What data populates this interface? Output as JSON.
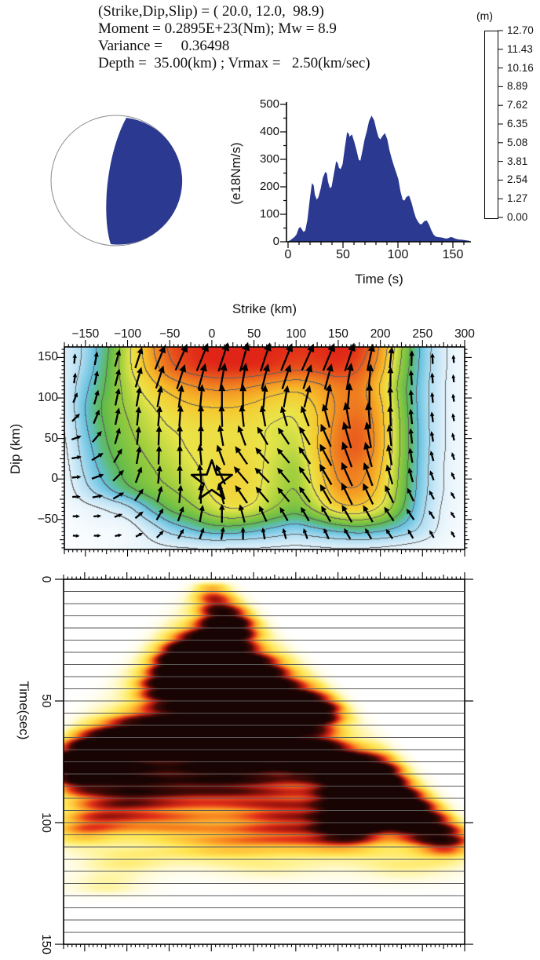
{
  "header": {
    "line1": "(Strike,Dip,Slip) = ( 20.0, 12.0,  98.9)",
    "line2": "Moment = 0.2895E+23(Nm); Mw = 8.9",
    "line3": "Variance =     0.36498",
    "line4": "Depth =  35.00(km) ; Vrmax =   2.50(km/sec)"
  },
  "beachball": {
    "fill": "#2b3990",
    "stroke": "#8a8a8a"
  },
  "colorbar": {
    "unit": "(m)",
    "tick_labels": [
      "12.70",
      "11.43",
      "10.16",
      "8.89",
      "7.62",
      "6.35",
      "5.08",
      "3.81",
      "2.54",
      "1.27",
      "0.00"
    ]
  },
  "chart_data": [
    {
      "name": "moment-rate-function",
      "type": "area",
      "xlabel": "Time (s)",
      "ylabel": "(e18Nm/s)",
      "xlim": [
        0,
        168
      ],
      "ylim": [
        0,
        500
      ],
      "xticks": [
        0,
        50,
        100,
        150
      ],
      "xtick_labels": [
        "0",
        "50",
        "100",
        "150"
      ],
      "yticks": [
        0,
        100,
        200,
        300,
        400,
        500
      ],
      "ytick_labels": [
        "0",
        "100",
        "200",
        "300",
        "400",
        "500"
      ],
      "fill": "#2b3990",
      "points": [
        [
          0,
          0
        ],
        [
          2,
          4
        ],
        [
          4,
          10
        ],
        [
          6,
          16
        ],
        [
          8,
          26
        ],
        [
          10,
          48
        ],
        [
          11,
          52
        ],
        [
          12,
          46
        ],
        [
          14,
          34
        ],
        [
          16,
          40
        ],
        [
          18,
          80
        ],
        [
          20,
          150
        ],
        [
          22,
          210
        ],
        [
          23,
          205
        ],
        [
          24,
          172
        ],
        [
          26,
          150
        ],
        [
          28,
          162
        ],
        [
          30,
          192
        ],
        [
          32,
          232
        ],
        [
          34,
          252
        ],
        [
          35,
          248
        ],
        [
          36,
          218
        ],
        [
          38,
          192
        ],
        [
          40,
          200
        ],
        [
          42,
          246
        ],
        [
          44,
          290
        ],
        [
          45,
          285
        ],
        [
          46,
          268
        ],
        [
          48,
          262
        ],
        [
          50,
          282
        ],
        [
          52,
          342
        ],
        [
          54,
          396
        ],
        [
          55,
          392
        ],
        [
          56,
          378
        ],
        [
          57,
          385
        ],
        [
          58,
          388
        ],
        [
          60,
          362
        ],
        [
          62,
          332
        ],
        [
          64,
          298
        ],
        [
          66,
          292
        ],
        [
          68,
          330
        ],
        [
          70,
          372
        ],
        [
          72,
          402
        ],
        [
          74,
          438
        ],
        [
          76,
          456
        ],
        [
          78,
          442
        ],
        [
          80,
          408
        ],
        [
          82,
          380
        ],
        [
          84,
          370
        ],
        [
          86,
          383
        ],
        [
          88,
          393
        ],
        [
          90,
          372
        ],
        [
          92,
          332
        ],
        [
          94,
          302
        ],
        [
          96,
          276
        ],
        [
          98,
          252
        ],
        [
          100,
          228
        ],
        [
          102,
          182
        ],
        [
          104,
          152
        ],
        [
          106,
          148
        ],
        [
          108,
          162
        ],
        [
          110,
          166
        ],
        [
          112,
          142
        ],
        [
          114,
          112
        ],
        [
          116,
          86
        ],
        [
          118,
          72
        ],
        [
          120,
          62
        ],
        [
          122,
          63
        ],
        [
          124,
          73
        ],
        [
          126,
          76
        ],
        [
          128,
          62
        ],
        [
          130,
          42
        ],
        [
          132,
          26
        ],
        [
          134,
          18
        ],
        [
          136,
          16
        ],
        [
          138,
          15
        ],
        [
          140,
          14
        ],
        [
          142,
          12
        ],
        [
          144,
          10
        ],
        [
          146,
          12
        ],
        [
          148,
          16
        ],
        [
          150,
          14
        ],
        [
          152,
          10
        ],
        [
          154,
          8
        ],
        [
          156,
          7
        ],
        [
          158,
          6
        ],
        [
          160,
          5
        ],
        [
          163,
          3
        ],
        [
          165,
          2
        ]
      ]
    },
    {
      "name": "slip-distribution-map",
      "type": "heatmap",
      "xlabel": "Strike (km)",
      "ylabel": "Dip (km)",
      "unit": "(m)",
      "xlim": [
        -175,
        300
      ],
      "ylim": [
        -87,
        163
      ],
      "xticks": [
        -150,
        -100,
        -50,
        0,
        50,
        100,
        150,
        200,
        250,
        300
      ],
      "xtick_labels": [
        "−150",
        "−100",
        "−50",
        "0",
        "50",
        "100",
        "150",
        "200",
        "250",
        "300"
      ],
      "yticks": [
        150,
        100,
        50,
        0,
        -50
      ],
      "ytick_labels": [
        "150",
        "100",
        "50",
        "0",
        "−50"
      ],
      "contour_interval": 1.27,
      "palette": {
        "values": [
          0,
          1.27,
          2.54,
          3.81,
          5.08,
          6.35,
          7.62,
          8.89,
          10.16,
          11.43,
          12.7
        ],
        "colors": [
          "#ffffff",
          "#e1f1fa",
          "#afddf2",
          "#62c0dd",
          "#5cb94d",
          "#98cc3c",
          "#e9e64a",
          "#f7c62d",
          "#f29122",
          "#ea5d1d",
          "#e02417"
        ]
      },
      "grid": {
        "x0": -175,
        "dx": 25,
        "y0": 163,
        "dy": -25,
        "cols": 20,
        "rows": 11,
        "values": [
          [
            1.5,
            2.8,
            4.8,
            7.2,
            9.6,
            11.6,
            12.4,
            12.7,
            12.7,
            12.7,
            12.6,
            12.4,
            12.5,
            12.7,
            12.2,
            10.0,
            6.5,
            3.5,
            1.5,
            0.5
          ],
          [
            1.4,
            3.0,
            5.0,
            7.2,
            9.2,
            11.0,
            12.0,
            12.4,
            12.5,
            12.4,
            12.1,
            11.7,
            11.9,
            12.2,
            11.5,
            9.5,
            6.2,
            3.4,
            1.5,
            0.5
          ],
          [
            1.5,
            3.5,
            5.2,
            6.8,
            8.2,
            9.3,
            10.0,
            10.4,
            10.4,
            10.1,
            9.6,
            9.3,
            9.8,
            10.6,
            10.6,
            8.8,
            5.8,
            3.2,
            1.4,
            0.5
          ],
          [
            1.5,
            3.8,
            5.4,
            6.5,
            7.4,
            8.2,
            8.7,
            8.9,
            8.9,
            8.6,
            8.1,
            8.0,
            9.0,
            10.3,
            10.7,
            9.2,
            6.0,
            3.2,
            1.4,
            0.5
          ],
          [
            1.3,
            3.6,
            5.2,
            6.2,
            7.0,
            7.6,
            7.9,
            8.0,
            8.0,
            7.9,
            7.5,
            7.5,
            8.8,
            10.6,
            11.2,
            9.4,
            6.2,
            3.3,
            1.4,
            0.5
          ],
          [
            1.1,
            3.2,
            4.9,
            5.9,
            6.6,
            7.2,
            7.7,
            7.9,
            8.0,
            7.9,
            7.4,
            7.1,
            8.8,
            10.8,
            11.3,
            9.4,
            6.2,
            3.3,
            1.4,
            0.5
          ],
          [
            0.9,
            2.8,
            4.4,
            5.5,
            6.2,
            6.8,
            7.4,
            7.9,
            8.3,
            8.0,
            7.1,
            6.6,
            8.4,
            10.4,
            10.6,
            9.0,
            6.0,
            3.2,
            1.3,
            0.5
          ],
          [
            0.7,
            2.2,
            3.6,
            4.8,
            5.7,
            6.3,
            6.9,
            7.8,
            8.3,
            7.9,
            6.9,
            6.4,
            7.9,
            9.8,
            10.0,
            8.5,
            5.8,
            3.1,
            1.3,
            0.5
          ],
          [
            0.4,
            0.9,
            1.4,
            2.2,
            3.8,
            5.2,
            6.0,
            7.0,
            7.6,
            7.2,
            6.2,
            5.6,
            6.7,
            8.2,
            8.4,
            7.3,
            5.2,
            2.8,
            1.1,
            0.4
          ],
          [
            0.2,
            0.4,
            0.5,
            0.7,
            1.8,
            3.0,
            3.8,
            4.5,
            4.6,
            4.2,
            3.6,
            3.2,
            3.7,
            4.3,
            4.6,
            4.2,
            3.4,
            2.2,
            0.9,
            0.3
          ],
          [
            0.1,
            0.2,
            0.4,
            0.6,
            0.9,
            1.1,
            1.2,
            1.3,
            1.2,
            1.2,
            1.1,
            1.0,
            1.1,
            1.2,
            1.2,
            1.1,
            0.9,
            0.7,
            0.4,
            0.1
          ]
        ]
      },
      "arrows": {
        "x0": -163,
        "dx": 25,
        "y0": 146,
        "dy": -24,
        "cols": 19,
        "rows": 10,
        "angles_deg_cw_from_up": [
          [
            5,
            10,
            15,
            18,
            22,
            24,
            22,
            18,
            15,
            18,
            22,
            24,
            22,
            18,
            12,
            6,
            2,
            -2,
            -4
          ],
          [
            8,
            12,
            14,
            16,
            18,
            18,
            15,
            10,
            10,
            14,
            18,
            18,
            15,
            10,
            5,
            0,
            -4,
            -5,
            -6
          ],
          [
            22,
            16,
            12,
            10,
            10,
            8,
            5,
            0,
            0,
            5,
            10,
            14,
            10,
            5,
            0,
            -2,
            -5,
            -6,
            -8
          ],
          [
            45,
            22,
            12,
            6,
            5,
            4,
            0,
            -2,
            -6,
            -10,
            -16,
            -20,
            -15,
            -10,
            -5,
            -2,
            -6,
            -8,
            -10
          ],
          [
            70,
            40,
            16,
            6,
            2,
            0,
            0,
            -10,
            -20,
            -30,
            -34,
            -30,
            -24,
            -16,
            -10,
            -6,
            -6,
            -10,
            -14
          ],
          [
            80,
            58,
            30,
            10,
            2,
            0,
            -5,
            -20,
            -34,
            -40,
            -40,
            -34,
            -28,
            -20,
            -15,
            -10,
            -10,
            -15,
            -18
          ],
          [
            85,
            70,
            45,
            20,
            6,
            0,
            -6,
            -25,
            -40,
            -44,
            -40,
            -34,
            -30,
            -24,
            -20,
            -16,
            -15,
            -20,
            -24
          ],
          [
            88,
            80,
            60,
            35,
            15,
            5,
            0,
            -15,
            -34,
            -40,
            -40,
            -35,
            -30,
            -26,
            -25,
            -25,
            -25,
            -28,
            -30
          ],
          [
            90,
            85,
            70,
            50,
            30,
            20,
            10,
            0,
            -15,
            -25,
            -30,
            -30,
            -30,
            -30,
            -30,
            -34,
            -34,
            -34,
            -34
          ],
          [
            94,
            90,
            80,
            62,
            45,
            30,
            20,
            10,
            0,
            -10,
            -15,
            -20,
            -25,
            -30,
            -30,
            -34,
            -30,
            -30,
            -30
          ]
        ]
      },
      "star": {
        "strike": 0,
        "dip": -3
      }
    },
    {
      "name": "rupture-propagation",
      "type": "heatmap",
      "ylabel": "Time(sec)",
      "xlim": [
        -175,
        300
      ],
      "tlim": [
        0,
        150
      ],
      "yticks": [
        0,
        50,
        100,
        150
      ],
      "ytick_labels": [
        "0",
        "50",
        "100",
        "150"
      ],
      "grid_step_sec": 5,
      "rupture_speed_kms": {
        "left": 2.55,
        "right": 2.85
      },
      "palette": {
        "values": [
          0,
          0.15,
          0.3,
          0.45,
          0.58,
          0.7,
          0.8,
          0.9,
          1.0,
          1.2
        ],
        "colors": [
          "#ffffff",
          "#fffbd7",
          "#fff394",
          "#ffe450",
          "#ffbe37",
          "#f6821e",
          "#e4321a",
          "#a0160e",
          "#460a06",
          "#180403"
        ]
      },
      "blobs_x_t_rx_rt_amp": [
        [
          0,
          6,
          25,
          7,
          0.5
        ],
        [
          15,
          14,
          30,
          7,
          0.6
        ],
        [
          25,
          21,
          35,
          7,
          0.85
        ],
        [
          -15,
          27,
          40,
          8,
          0.72
        ],
        [
          -38,
          34,
          35,
          7,
          0.8
        ],
        [
          15,
          33,
          45,
          8,
          0.75
        ],
        [
          55,
          38,
          40,
          8,
          0.82
        ],
        [
          -52,
          44,
          40,
          8,
          0.85
        ],
        [
          5,
          47,
          55,
          9,
          0.6
        ],
        [
          85,
          48,
          45,
          8,
          0.75
        ],
        [
          125,
          55,
          35,
          7,
          0.82
        ],
        [
          65,
          57,
          55,
          9,
          0.95
        ],
        [
          -15,
          60,
          70,
          8,
          0.75
        ],
        [
          -95,
          63,
          45,
          8,
          0.75
        ],
        [
          -145,
          69,
          35,
          8,
          0.65
        ],
        [
          -55,
          68,
          65,
          5,
          0.85
        ],
        [
          30,
          68,
          55,
          8,
          0.82
        ],
        [
          20,
          76,
          80,
          8,
          0.55
        ],
        [
          125,
          73,
          40,
          8,
          1.2
        ],
        [
          185,
          80,
          40,
          9,
          1.25
        ],
        [
          178,
          90,
          42,
          9,
          1.35
        ],
        [
          165,
          101,
          35,
          6,
          1.05
        ],
        [
          220,
          93,
          40,
          8,
          1.1
        ],
        [
          250,
          101,
          40,
          8,
          0.95
        ],
        [
          282,
          108,
          35,
          7,
          0.75
        ],
        [
          -120,
          76,
          50,
          9,
          0.75
        ],
        [
          -170,
          75,
          25,
          6,
          0.5
        ],
        [
          -162,
          82,
          30,
          7,
          0.55
        ],
        [
          -100,
          88,
          60,
          9,
          0.5
        ],
        [
          0,
          87,
          90,
          10,
          0.5
        ],
        [
          100,
          97,
          70,
          9,
          0.5
        ],
        [
          -60,
          101,
          80,
          7,
          0.45
        ],
        [
          -140,
          98,
          50,
          8,
          0.42
        ],
        [
          -160,
          105,
          40,
          6,
          0.32
        ],
        [
          55,
          106,
          90,
          7,
          0.4
        ],
        [
          155,
          109,
          70,
          7,
          0.42
        ],
        [
          -105,
          116,
          55,
          6,
          0.3
        ],
        [
          -125,
          126,
          45,
          5,
          0.25
        ],
        [
          70,
          119,
          70,
          5,
          0.2
        ],
        [
          230,
          118,
          60,
          6,
          0.28
        ],
        [
          0,
          112,
          80,
          6,
          0.3
        ],
        [
          0,
          30,
          60,
          25,
          0.25
        ],
        [
          50,
          60,
          120,
          20,
          0.3
        ],
        [
          -80,
          80,
          90,
          15,
          0.3
        ],
        [
          100,
          85,
          120,
          15,
          0.32
        ],
        [
          0,
          55,
          100,
          18,
          0.25
        ]
      ]
    }
  ]
}
